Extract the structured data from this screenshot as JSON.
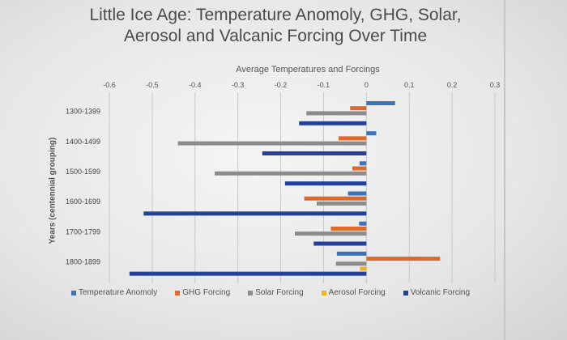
{
  "chart_data": {
    "type": "bar",
    "orientation": "horizontal",
    "title": "Little Ice Age: Temperature Anomoly, GHG, Solar, Aerosol and Valcanic Forcing Over Time",
    "xlabel": "Average Temperatures and Forcings",
    "ylabel": "Years (centennial grouping)",
    "xlim": [
      -0.6,
      0.3
    ],
    "xticks": [
      "-0.6",
      "-0.5",
      "-0.4",
      "-0.3",
      "-0.2",
      "-0.1",
      "0",
      "0.1",
      "0.2",
      "0.3"
    ],
    "grid": true,
    "legend_position": "bottom",
    "categories": [
      "1300-1399",
      "1400-1499",
      "1500-1599",
      "1600-1699",
      "1700-1799",
      "1800-1899"
    ],
    "series": [
      {
        "name": "Temperature Anomoly",
        "color": "#3b74b8",
        "values": [
          0.067,
          0.023,
          -0.016,
          -0.043,
          -0.017,
          -0.069
        ]
      },
      {
        "name": "GHG Forcing",
        "color": "#e0692a",
        "values": [
          -0.038,
          -0.065,
          -0.033,
          -0.145,
          -0.083,
          0.172
        ]
      },
      {
        "name": "Solar Forcing",
        "color": "#8c8c8c",
        "values": [
          -0.14,
          -0.44,
          -0.354,
          -0.116,
          -0.167,
          -0.071
        ]
      },
      {
        "name": "Aerosol Forcing",
        "color": "#f0b323",
        "values": [
          0,
          0,
          0,
          0,
          0,
          -0.015
        ]
      },
      {
        "name": "Volcanic Forcing",
        "color": "#23409a",
        "values": [
          -0.157,
          -0.243,
          -0.19,
          -0.52,
          -0.123,
          -0.553
        ]
      }
    ]
  }
}
